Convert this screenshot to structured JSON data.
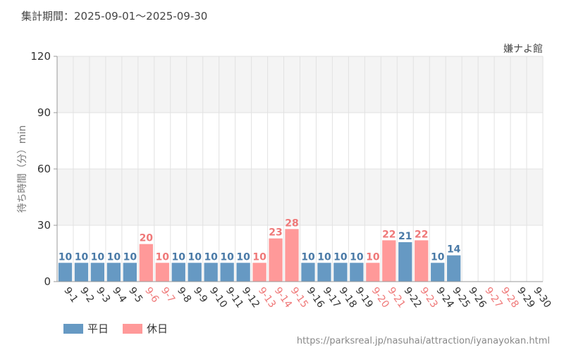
{
  "header": {
    "period_label": "集計期間：2025-09-01～2025-09-30",
    "attraction_name": "嫌ナよ館"
  },
  "footer": {
    "source_url": "https://parksreal.jp/nasuhai/attraction/iyanayokan.html"
  },
  "colors": {
    "weekday": "#6699c3",
    "holiday": "#ff9999",
    "weekday_text": "#4a7aa7",
    "holiday_text": "#ef7878",
    "band": "#f4f4f4",
    "grid": "#e2e2e2"
  },
  "chart_data": {
    "type": "bar",
    "title": "",
    "xlabel": "",
    "ylabel": "待ち時間（分）min",
    "ylim": [
      0,
      120
    ],
    "yticks": [
      0,
      30,
      60,
      90,
      120
    ],
    "grid": true,
    "legend_position": "bottom-left",
    "categories": [
      "9-1",
      "9-2",
      "9-3",
      "9-4",
      "9-5",
      "9-6",
      "9-7",
      "9-8",
      "9-9",
      "9-10",
      "9-11",
      "9-12",
      "9-13",
      "9-14",
      "9-15",
      "9-16",
      "9-17",
      "9-18",
      "9-19",
      "9-20",
      "9-21",
      "9-22",
      "9-23",
      "9-24",
      "9-25",
      "9-26",
      "9-27",
      "9-28",
      "9-29",
      "9-30"
    ],
    "values": [
      10,
      10,
      10,
      10,
      10,
      20,
      10,
      10,
      10,
      10,
      10,
      10,
      10,
      23,
      28,
      10,
      10,
      10,
      10,
      10,
      22,
      21,
      22,
      10,
      14,
      null,
      null,
      null,
      null,
      null
    ],
    "day_type": [
      "weekday",
      "weekday",
      "weekday",
      "weekday",
      "weekday",
      "holiday",
      "holiday",
      "weekday",
      "weekday",
      "weekday",
      "weekday",
      "weekday",
      "holiday",
      "holiday",
      "holiday",
      "weekday",
      "weekday",
      "weekday",
      "weekday",
      "holiday",
      "holiday",
      "weekday",
      "holiday",
      "weekday",
      "weekday",
      "weekday",
      "holiday",
      "holiday",
      "weekday",
      "weekday"
    ],
    "legend": [
      {
        "key": "weekday",
        "label": "平日"
      },
      {
        "key": "holiday",
        "label": "休日"
      }
    ]
  }
}
